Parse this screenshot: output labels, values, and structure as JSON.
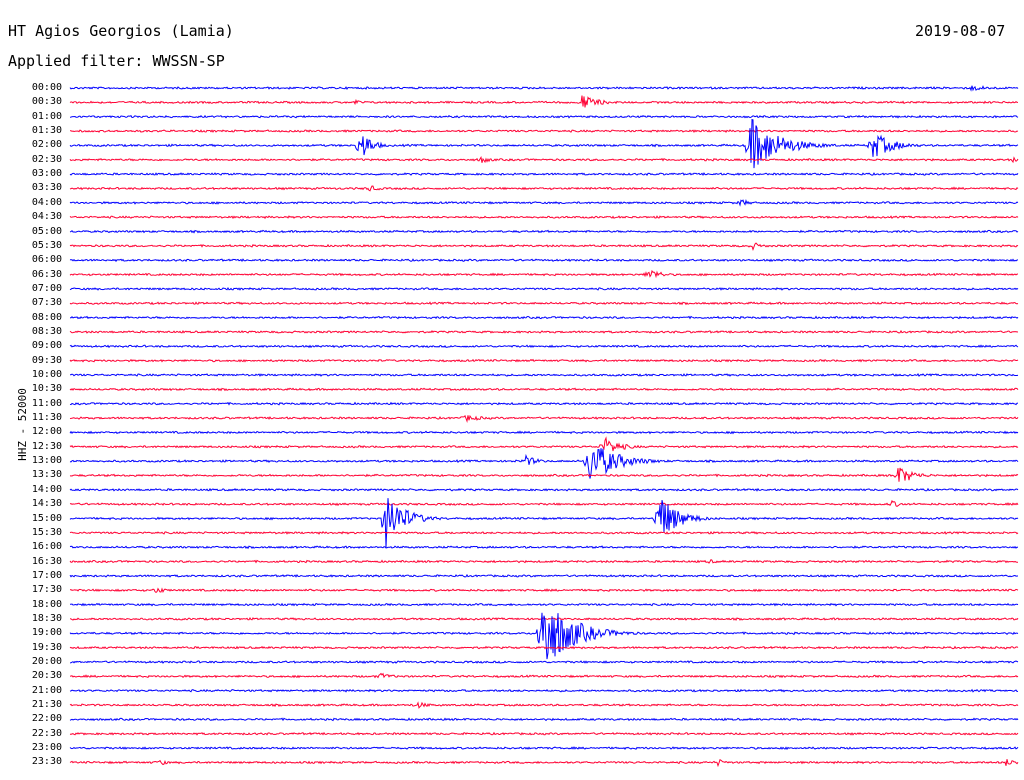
{
  "header": {
    "station": "HT Agios Georgios (Lamia)",
    "date": "2019-08-07",
    "filter": "Applied filter: WWSSN-SP"
  },
  "ylabel": "HHZ - 52000",
  "colors": {
    "blue": "#0000ff",
    "red": "#ff0033",
    "text": "#000000"
  },
  "chart_data": {
    "type": "line",
    "title": "HT Agios Georgios (Lamia)",
    "subtitle": "Applied filter: WWSSN-SP",
    "date": "2019-08-07",
    "ylabel": "HHZ - 52000",
    "y_ticks": [
      "00:00",
      "00:30",
      "01:00",
      "01:30",
      "02:00",
      "02:30",
      "03:00",
      "03:30",
      "04:00",
      "04:30",
      "05:00",
      "05:30",
      "06:00",
      "06:30",
      "07:00",
      "07:30",
      "08:00",
      "08:30",
      "09:00",
      "09:30",
      "10:00",
      "10:30",
      "11:00",
      "11:30",
      "12:00",
      "12:30",
      "13:00",
      "13:30",
      "14:00",
      "14:30",
      "15:00",
      "15:30",
      "16:00",
      "16:30",
      "17:00",
      "17:30",
      "18:00",
      "18:30",
      "19:00",
      "19:30",
      "20:00",
      "20:30",
      "21:00",
      "21:30",
      "22:00",
      "22:30",
      "23:00",
      "23:30"
    ],
    "trace_minutes": 30,
    "alternating_colors": [
      "blue",
      "red"
    ],
    "events": [
      {
        "trace": 0,
        "at_min": 28.5,
        "amp": 3,
        "dur_min": 1.2
      },
      {
        "trace": 1,
        "at_min": 16.2,
        "amp": 8,
        "dur_min": 0.8
      },
      {
        "trace": 1,
        "at_min": 9.0,
        "amp": 3,
        "dur_min": 0.5
      },
      {
        "trace": 4,
        "at_min": 9.2,
        "amp": 18,
        "dur_min": 0.5
      },
      {
        "trace": 4,
        "at_min": 21.5,
        "amp": 30,
        "dur_min": 1.4
      },
      {
        "trace": 4,
        "at_min": 25.4,
        "amp": 14,
        "dur_min": 1.0
      },
      {
        "trace": 5,
        "at_min": 13.0,
        "amp": 4,
        "dur_min": 0.5
      },
      {
        "trace": 5,
        "at_min": 29.8,
        "amp": 3,
        "dur_min": 0.5
      },
      {
        "trace": 7,
        "at_min": 9.4,
        "amp": 4,
        "dur_min": 0.6
      },
      {
        "trace": 8,
        "at_min": 21.2,
        "amp": 4,
        "dur_min": 0.5
      },
      {
        "trace": 11,
        "at_min": 21.6,
        "amp": 4,
        "dur_min": 0.5
      },
      {
        "trace": 13,
        "at_min": 18.3,
        "amp": 7,
        "dur_min": 0.6
      },
      {
        "trace": 23,
        "at_min": 12.5,
        "amp": 4,
        "dur_min": 0.8
      },
      {
        "trace": 25,
        "at_min": 16.9,
        "amp": 10,
        "dur_min": 0.8
      },
      {
        "trace": 26,
        "at_min": 14.4,
        "amp": 6,
        "dur_min": 0.6
      },
      {
        "trace": 26,
        "at_min": 16.4,
        "amp": 24,
        "dur_min": 1.3
      },
      {
        "trace": 27,
        "at_min": 26.2,
        "amp": 10,
        "dur_min": 0.8
      },
      {
        "trace": 29,
        "at_min": 26.0,
        "amp": 4,
        "dur_min": 0.5
      },
      {
        "trace": 30,
        "at_min": 10.0,
        "amp": 30,
        "dur_min": 0.9
      },
      {
        "trace": 30,
        "at_min": 18.6,
        "amp": 28,
        "dur_min": 0.9
      },
      {
        "trace": 33,
        "at_min": 20.2,
        "amp": 3,
        "dur_min": 0.4
      },
      {
        "trace": 35,
        "at_min": 2.7,
        "amp": 5,
        "dur_min": 0.4
      },
      {
        "trace": 38,
        "at_min": 14.9,
        "amp": 45,
        "dur_min": 1.4
      },
      {
        "trace": 41,
        "at_min": 9.8,
        "amp": 4,
        "dur_min": 0.6
      },
      {
        "trace": 43,
        "at_min": 10.9,
        "amp": 4,
        "dur_min": 0.7
      },
      {
        "trace": 47,
        "at_min": 2.8,
        "amp": 4,
        "dur_min": 0.4
      },
      {
        "trace": 47,
        "at_min": 20.5,
        "amp": 4,
        "dur_min": 0.4
      },
      {
        "trace": 47,
        "at_min": 29.6,
        "amp": 4,
        "dur_min": 0.6
      }
    ]
  }
}
